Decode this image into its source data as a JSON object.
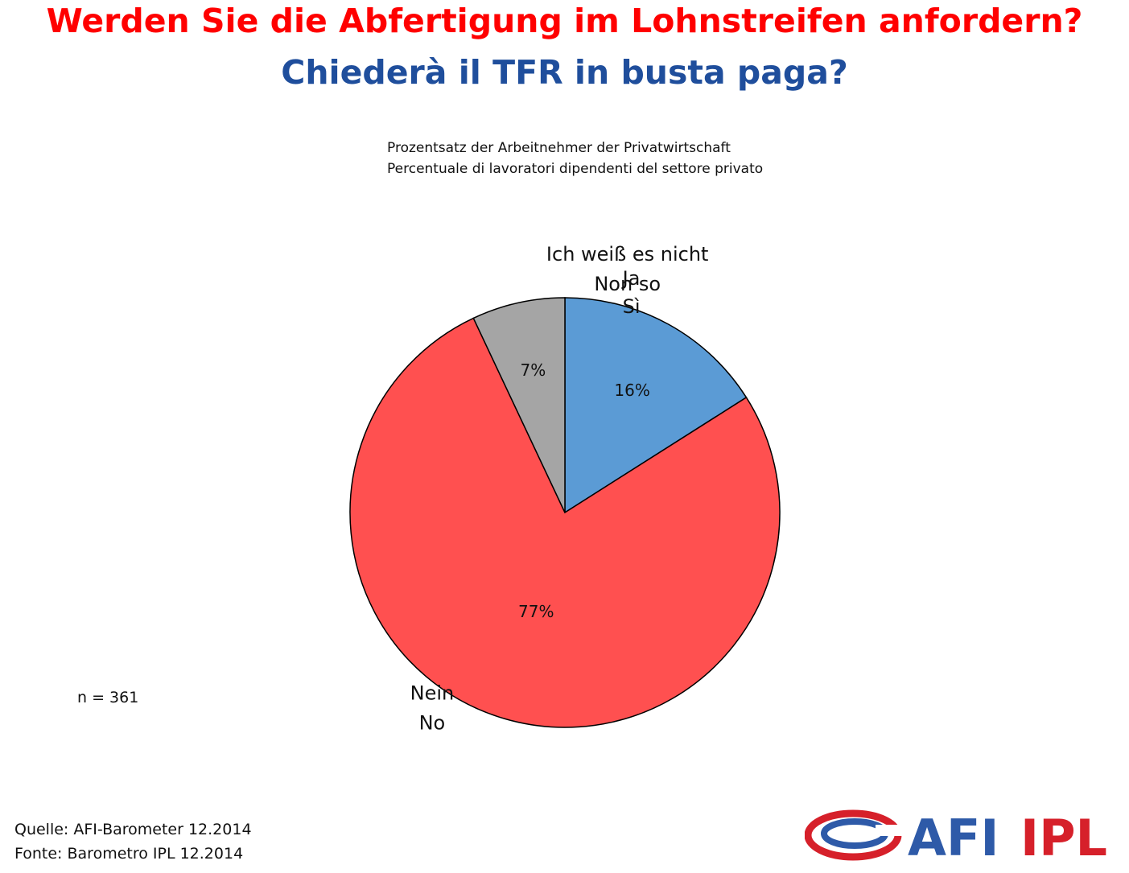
{
  "header": {
    "title_de": "Werden Sie die Abfertigung im Lohnstreifen anfordern?",
    "title_it": "Chiederà il TFR in busta paga?"
  },
  "subtitle": {
    "line1": "Prozentsatz der Arbeitnehmer der Privatwirtschaft",
    "line2": "Percentuale di lavoratori dipendenti del settore privato"
  },
  "chart_data": {
    "type": "pie",
    "start_angle_deg": 0,
    "direction": "clockwise",
    "slices": [
      {
        "label_de": "Ja",
        "label_it": "Sì",
        "value": 16,
        "value_label": "16%",
        "color": "#5b9bd5"
      },
      {
        "label_de": "Nein",
        "label_it": "No",
        "value": 77,
        "value_label": "77%",
        "color": "#ff5050"
      },
      {
        "label_de": "Ich weiß es nicht",
        "label_it": "Non so",
        "value": 7,
        "value_label": "7%",
        "color": "#a5a5a5"
      }
    ]
  },
  "sample": "n = 361",
  "footer": {
    "source_de": "Quelle: AFI-Barometer 12.2014",
    "source_it": "Fonte: Barometro IPL 12.2014"
  },
  "logo": {
    "part1": "AFI",
    "part2": "IPL",
    "color1": "#2e5aa8",
    "color2": "#d6202a"
  }
}
